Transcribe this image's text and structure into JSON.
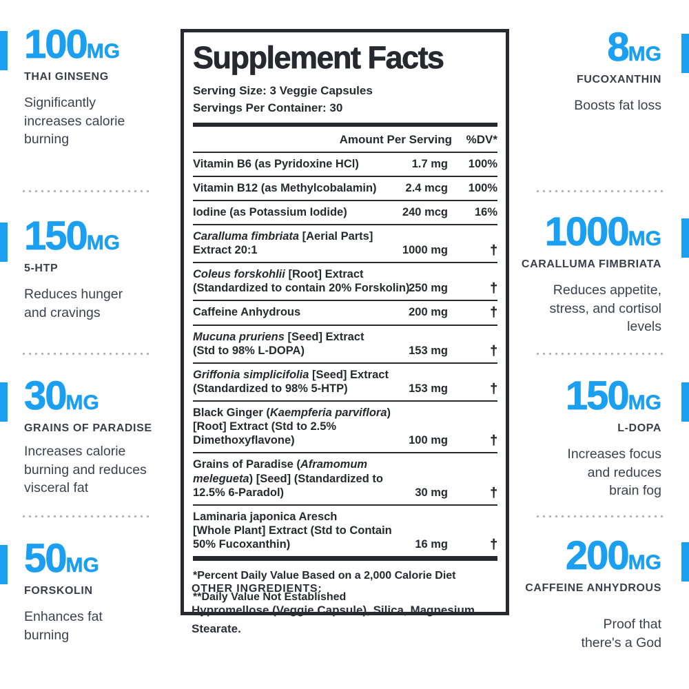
{
  "colors": {
    "accent": "#1b9ff0",
    "ink": "#26292e",
    "label": "#3a4049",
    "description": "#3b424c",
    "dots": "#b4b7bb"
  },
  "left_items": [
    {
      "amount": "100",
      "unit": "MG",
      "name": "THAI GINSENG",
      "description": "Significantly\nincreases calorie\nburning"
    },
    {
      "amount": "150",
      "unit": "MG",
      "name": "5-HTP",
      "description": "Reduces hunger\nand cravings"
    },
    {
      "amount": "30",
      "unit": "MG",
      "name": "GRAINS OF PARADISE",
      "description": "Increases calorie\nburning and reduces\nvisceral fat"
    },
    {
      "amount": "50",
      "unit": "MG",
      "name": "FORSKOLIN",
      "description": "Enhances fat\nburning"
    }
  ],
  "right_items": [
    {
      "amount": "8",
      "unit": "MG",
      "name": "FUCOXANTHIN",
      "description": "Boosts fat loss"
    },
    {
      "amount": "1000",
      "unit": "MG",
      "name": "CARALLUMA FIMBRIATA",
      "description": "Reduces appetite,\nstress, and cortisol\nlevels"
    },
    {
      "amount": "150",
      "unit": "MG",
      "name": "L-DOPA",
      "description": "Increases focus\nand reduces\nbrain fog"
    },
    {
      "amount": "200",
      "unit": "MG",
      "name": "CAFFEINE ANHYDROUS",
      "description": "Proof that\nthere's a God"
    }
  ],
  "facts_panel": {
    "title": "Supplement Facts",
    "serving_size": "Serving Size: 3 Veggie Capsules",
    "servings_per_container": "Servings Per Container: 30",
    "col_amount": "Amount Per Serving",
    "col_dv": "%DV*",
    "rows": [
      {
        "name_parts": [
          [
            "Vitamin B6 (as Pyridoxine HCl)",
            false
          ]
        ],
        "amount": "1.7 mg",
        "dv": "100%"
      },
      {
        "name_parts": [
          [
            "Vitamin B12 (as Methylcobalamin)",
            false
          ]
        ],
        "amount": "2.4 mcg",
        "dv": "100%"
      },
      {
        "name_parts": [
          [
            "Iodine (as Potassium Iodide)",
            false
          ]
        ],
        "amount": "240 mcg",
        "dv": "16%"
      },
      {
        "name_parts": [
          [
            "Caralluma fimbriata",
            true
          ],
          [
            " [Aerial Parts]\nExtract 20:1",
            false
          ]
        ],
        "amount": "1000 mg",
        "dv": "†"
      },
      {
        "name_parts": [
          [
            "Coleus forskohlii",
            true
          ],
          [
            " [Root] Extract\n(Standardized to contain 20% Forskolin)",
            false
          ]
        ],
        "amount": "250 mg",
        "dv": "†"
      },
      {
        "name_parts": [
          [
            "Caffeine Anhydrous",
            false
          ]
        ],
        "amount": "200 mg",
        "dv": "†"
      },
      {
        "name_parts": [
          [
            "Mucuna pruriens",
            true
          ],
          [
            " [Seed] Extract\n(Std to 98% L-DOPA)",
            false
          ]
        ],
        "amount": "153 mg",
        "dv": "†"
      },
      {
        "name_parts": [
          [
            "Griffonia simplicifolia",
            true
          ],
          [
            " [Seed] Extract\n(Standardized to 98% 5-HTP)",
            false
          ]
        ],
        "amount": "153 mg",
        "dv": "†"
      },
      {
        "name_parts": [
          [
            "Black Ginger (",
            false
          ],
          [
            "Kaempferia parviflora",
            true
          ],
          [
            ")\n[Root] Extract (Std to 2.5%\nDimethoxyflavone)",
            false
          ]
        ],
        "amount": "100 mg",
        "dv": "†"
      },
      {
        "name_parts": [
          [
            "Grains of Paradise (",
            false
          ],
          [
            "Aframomum\nmelegueta",
            true
          ],
          [
            ") [Seed] (Standardized to\n12.5% 6-Paradol)",
            false
          ]
        ],
        "amount": "30 mg",
        "dv": "†"
      },
      {
        "name_parts": [
          [
            "Laminaria japonica Aresch\n[Whole Plant] Extract (Std to Contain\n50% Fucoxanthin)",
            false
          ]
        ],
        "amount": "16 mg",
        "dv": "†"
      }
    ],
    "footnotes": [
      "*Percent Daily Value Based on a 2,000 Calorie Diet",
      "**Daily Value Not Established"
    ]
  },
  "other_ingredients": {
    "heading": "OTHER INGREDIENTS:",
    "body": "Hypromellose (Veggie Capsule), Silica, Magnesium\nStearate."
  }
}
